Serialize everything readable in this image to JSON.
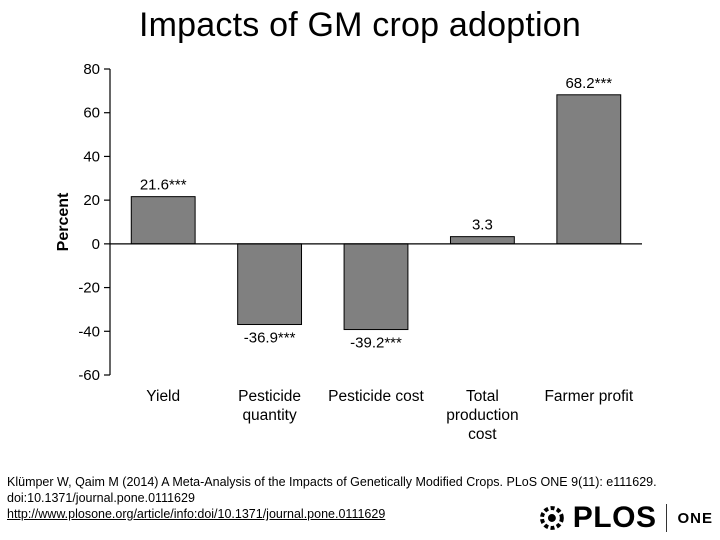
{
  "title": "Impacts of GM crop adoption",
  "chart_data": {
    "type": "bar",
    "ylabel": "Percent",
    "ylim": [
      -60,
      80
    ],
    "yticks": [
      80,
      60,
      40,
      20,
      0,
      -20,
      -40,
      -60
    ],
    "categories": [
      [
        "Yield"
      ],
      [
        "Pesticide",
        "quantity"
      ],
      [
        "Pesticide cost"
      ],
      [
        "Total",
        "production",
        "cost"
      ],
      [
        "Farmer profit"
      ]
    ],
    "values": [
      21.6,
      -36.9,
      -39.2,
      3.3,
      68.2
    ],
    "data_labels": [
      "21.6***",
      "-36.9***",
      "-39.2***",
      "3.3",
      "68.2***"
    ],
    "bar_color": "#808080",
    "bar_edge": "#000000"
  },
  "citation": {
    "text": "Klümper W, Qaim M (2014) A Meta-Analysis of the Impacts of Genetically Modified Crops. PLoS ONE 9(11): e111629. doi:10.1371/journal.pone.0111629",
    "link": "http://www.plosone.org/article/info:doi/10.1371/journal.pone.0111629"
  },
  "logo": {
    "word": "PLOS",
    "suffix": "ONE"
  }
}
